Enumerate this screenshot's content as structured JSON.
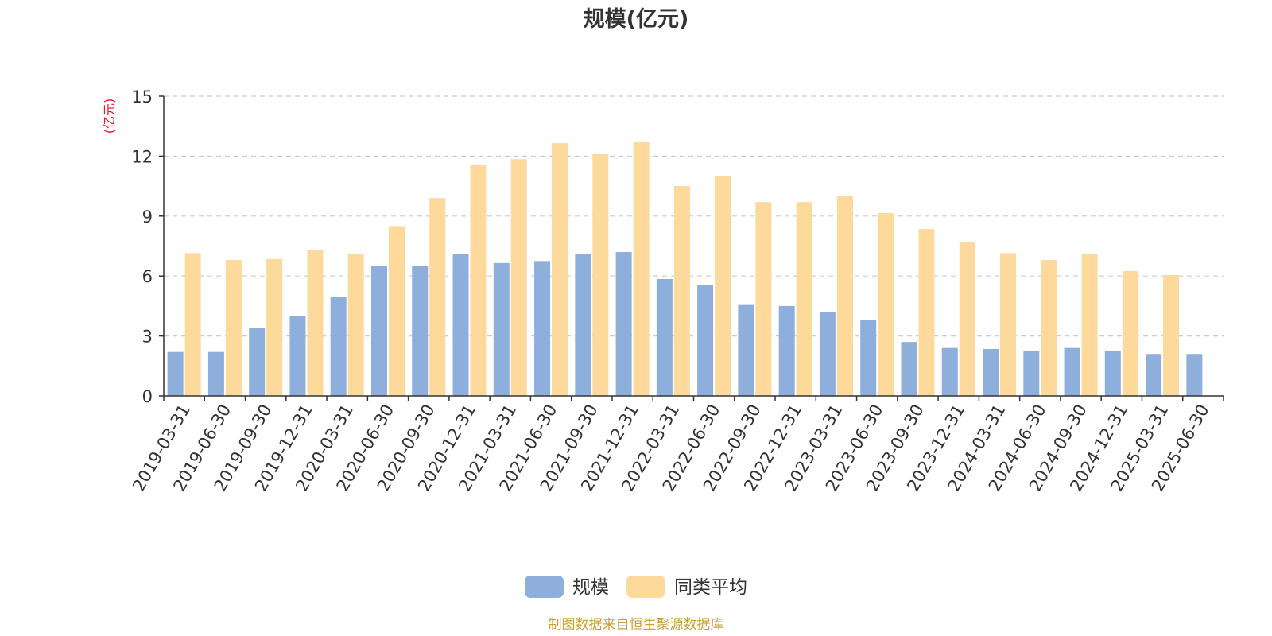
{
  "chart_data": {
    "type": "bar",
    "title": "规模(亿元)",
    "ylabel": "(亿元)",
    "xlabel": "",
    "ylim": [
      0,
      15
    ],
    "yticks": [
      0,
      3,
      6,
      9,
      12,
      15
    ],
    "grid": true,
    "legend_position": "bottom",
    "categories": [
      "2019-03-31",
      "2019-06-30",
      "2019-09-30",
      "2019-12-31",
      "2020-03-31",
      "2020-06-30",
      "2020-09-30",
      "2020-12-31",
      "2021-03-31",
      "2021-06-30",
      "2021-09-30",
      "2021-12-31",
      "2022-03-31",
      "2022-06-30",
      "2022-09-30",
      "2022-12-31",
      "2023-03-31",
      "2023-06-30",
      "2023-09-30",
      "2023-12-31",
      "2024-03-31",
      "2024-06-30",
      "2024-09-30",
      "2024-12-31",
      "2025-03-31",
      "2025-06-30"
    ],
    "series": [
      {
        "name": "规模",
        "color": "#8eaedc",
        "values": [
          2.2,
          2.2,
          3.4,
          4.0,
          4.95,
          6.5,
          6.5,
          7.1,
          6.65,
          6.75,
          7.1,
          7.2,
          5.85,
          5.55,
          4.55,
          4.5,
          4.2,
          3.8,
          2.7,
          2.4,
          2.35,
          2.25,
          2.4,
          2.25,
          2.1,
          2.1
        ]
      },
      {
        "name": "同类平均",
        "color": "#fdd99b",
        "values": [
          7.15,
          6.8,
          6.85,
          7.3,
          7.1,
          8.5,
          9.9,
          11.55,
          11.85,
          12.65,
          12.1,
          12.7,
          10.5,
          11.0,
          9.7,
          9.7,
          10.0,
          9.15,
          8.35,
          7.7,
          7.15,
          6.8,
          7.1,
          6.25,
          6.05,
          null
        ]
      }
    ],
    "source": "制图数据来自恒生聚源数据库"
  }
}
